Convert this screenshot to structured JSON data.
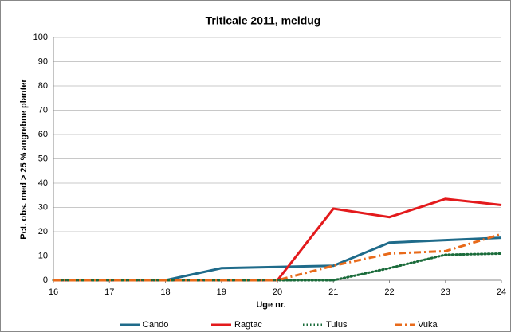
{
  "chart_data": {
    "type": "line",
    "title": "Triticale 2011, meldug",
    "x_label": "Uge nr.",
    "y_label": "Pct. obs. med > 25 % angrebne planter",
    "x": [
      16,
      17,
      18,
      19,
      20,
      21,
      22,
      23,
      24
    ],
    "xlim": [
      16,
      24
    ],
    "xticks": [
      16,
      17,
      18,
      19,
      20,
      21,
      22,
      23,
      24
    ],
    "ylim": [
      0,
      100
    ],
    "yticks": [
      0,
      10,
      20,
      30,
      40,
      50,
      60,
      70,
      80,
      90,
      100
    ],
    "grid": true,
    "legend": "bottom",
    "series": [
      {
        "name": "Cando",
        "color": "#1f6b8a",
        "style": "solid",
        "values": [
          0,
          0,
          0,
          5,
          5.5,
          6,
          15.5,
          16.5,
          17.5
        ]
      },
      {
        "name": "Ragtac",
        "color": "#e31a1c",
        "style": "solid",
        "values": [
          0,
          0,
          0,
          0,
          0,
          29.5,
          26,
          33.5,
          31
        ]
      },
      {
        "name": "Tulus",
        "color": "#1a6b3a",
        "style": "dotted",
        "values": [
          0,
          0,
          0,
          0,
          0,
          0,
          5,
          10.5,
          11
        ]
      },
      {
        "name": "Vuka",
        "color": "#e86a1a",
        "style": "dashdot",
        "values": [
          0,
          0,
          0,
          0,
          0,
          6,
          11,
          12,
          19
        ]
      }
    ]
  }
}
